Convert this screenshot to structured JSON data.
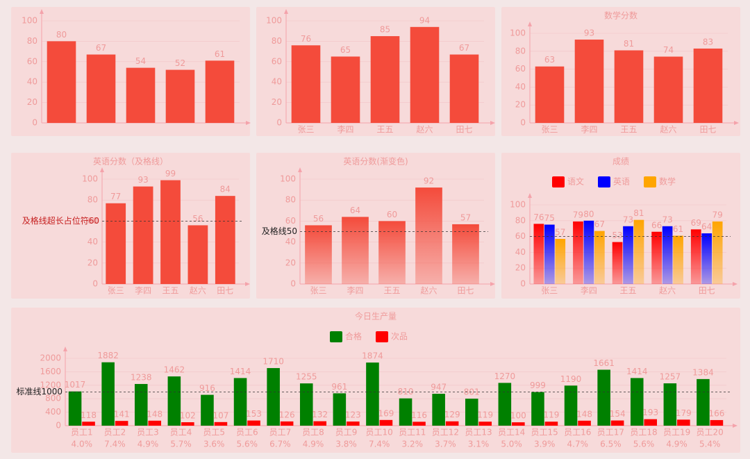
{
  "chart_data": [
    {
      "type": "bar",
      "categories": [
        null,
        null,
        null,
        null,
        null
      ],
      "values": [
        80,
        67,
        54,
        52,
        61
      ],
      "color": "#f44b3b",
      "ylim": [
        0,
        100
      ],
      "yticks": [
        0,
        20,
        40,
        60,
        80,
        100
      ],
      "grid": true
    },
    {
      "type": "bar",
      "categories": [
        "张三",
        "李四",
        "王五",
        "赵六",
        "田七"
      ],
      "values": [
        76,
        65,
        85,
        94,
        67
      ],
      "color": "#f44b3b",
      "ylim": [
        0,
        100
      ],
      "yticks": [
        0,
        20,
        40,
        60,
        80,
        100
      ],
      "grid": true
    },
    {
      "type": "bar",
      "title": "数学分数",
      "categories": [
        "张三",
        "李四",
        "王五",
        "赵六",
        "田七"
      ],
      "values": [
        63,
        93,
        81,
        74,
        83
      ],
      "color": "#f44b3b",
      "ylim": [
        0,
        100
      ],
      "yticks": [
        0,
        20,
        40,
        60,
        80,
        100
      ],
      "grid": true
    },
    {
      "type": "bar",
      "title": "英语分数（及格线）",
      "categories": [
        "张三",
        "李四",
        "王五",
        "赵六",
        "田七"
      ],
      "values": [
        77,
        93,
        99,
        56,
        84
      ],
      "color": "#f44b3b",
      "ylim": [
        0,
        100
      ],
      "yticks": [
        0,
        20,
        40,
        60,
        80,
        100
      ],
      "grid": true,
      "mark_line": {
        "value": 60,
        "label": "及格线超长占位符60",
        "color": "#c62020"
      }
    },
    {
      "type": "bar",
      "title": "英语分数(渐变色)",
      "categories": [
        "张三",
        "李四",
        "王五",
        "赵六",
        "田七"
      ],
      "values": [
        56,
        64,
        60,
        92,
        57
      ],
      "color": "#f44b3b",
      "gradient": true,
      "ylim": [
        0,
        100
      ],
      "yticks": [
        0,
        20,
        40,
        60,
        80,
        100
      ],
      "grid": true,
      "mark_line": {
        "value": 50,
        "label": "及格线50",
        "color": "#222222"
      }
    },
    {
      "type": "bar",
      "title": "成绩",
      "categories": [
        "张三",
        "李四",
        "王五",
        "赵六",
        "田七"
      ],
      "series": [
        {
          "name": "语文",
          "color": "#ff0000",
          "values": [
            76,
            79,
            53,
            66,
            69
          ]
        },
        {
          "name": "英语",
          "color": "#0000ff",
          "values": [
            75,
            80,
            73,
            73,
            64
          ]
        },
        {
          "name": "数学",
          "color": "#ffa500",
          "values": [
            57,
            67,
            81,
            61,
            79
          ]
        }
      ],
      "gradient": true,
      "ylim": [
        0,
        100
      ],
      "yticks": [
        0,
        20,
        40,
        60,
        80,
        100
      ],
      "grid": true,
      "mark_line": {
        "value": 60
      }
    },
    {
      "type": "bar",
      "title": "今日生产量",
      "categories": [
        "员工1",
        "员工2",
        "员工3",
        "员工4",
        "员工5",
        "员工6",
        "员工7",
        "员工8",
        "员工9",
        "员工10",
        "员工11",
        "员工12",
        "员工13",
        "员工14",
        "员工15",
        "员工16",
        "员工17",
        "员工18",
        "员工19",
        "员工20"
      ],
      "category_notes": [
        "4.0%",
        "7.4%",
        "4.9%",
        "5.7%",
        "3.6%",
        "5.6%",
        "6.7%",
        "4.9%",
        "3.8%",
        "7.4%",
        "3.2%",
        "3.7%",
        "3.1%",
        "5.0%",
        "3.9%",
        "4.7%",
        "6.5%",
        "5.6%",
        "4.9%",
        "5.4%"
      ],
      "series": [
        {
          "name": "合格",
          "color": "#008000",
          "values": [
            1017,
            1882,
            1238,
            1462,
            916,
            1414,
            1710,
            1255,
            961,
            1874,
            810,
            947,
            801,
            1270,
            999,
            1190,
            1661,
            1414,
            1257,
            1384
          ]
        },
        {
          "name": "次品",
          "color": "#ff0000",
          "values": [
            118,
            141,
            148,
            102,
            107,
            153,
            126,
            132,
            123,
            169,
            116,
            129,
            119,
            100,
            119,
            148,
            154,
            193,
            179,
            166
          ]
        }
      ],
      "ylim": [
        0,
        2000
      ],
      "yticks": [
        0,
        400,
        800,
        1200,
        1600,
        2000
      ],
      "grid": true,
      "mark_line": {
        "value": 1000,
        "label": "标准线1000",
        "color": "#222222"
      }
    }
  ]
}
